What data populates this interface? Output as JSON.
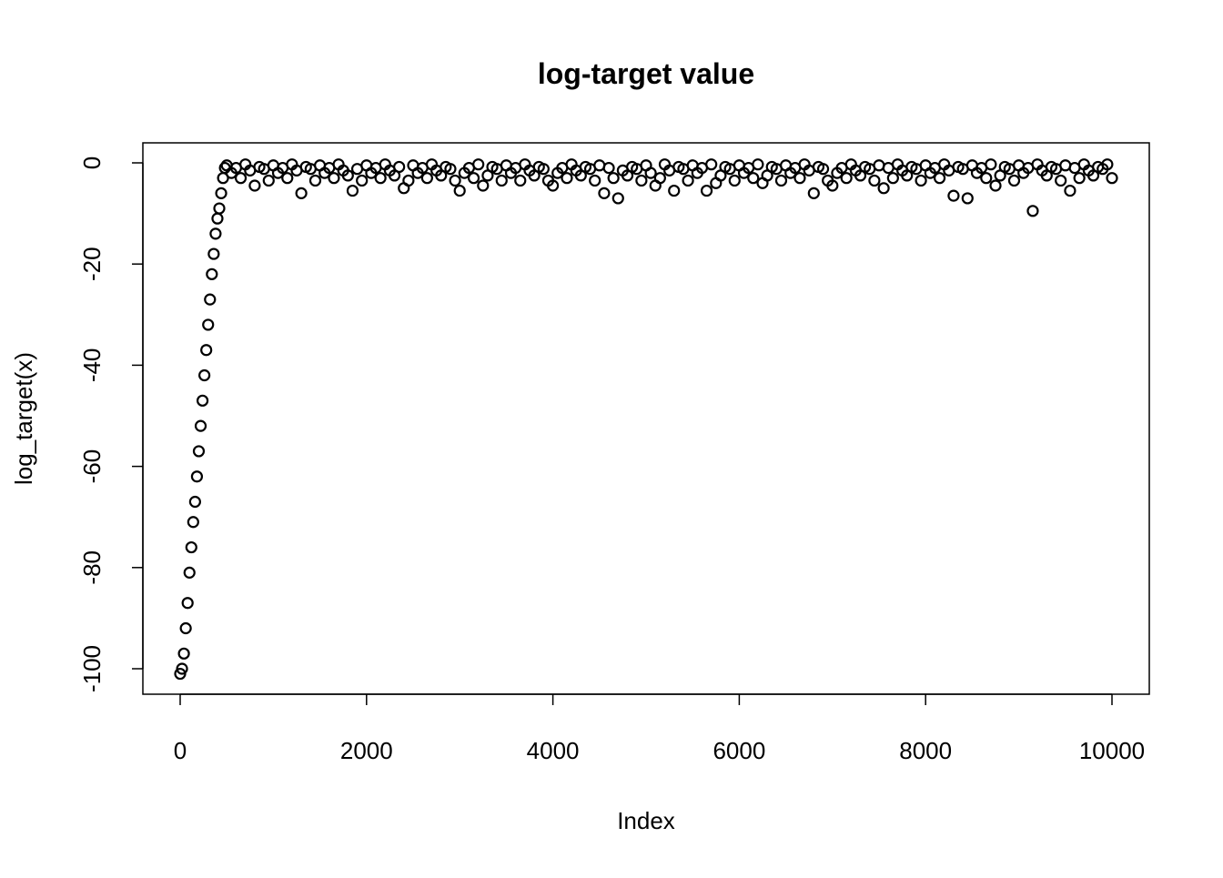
{
  "chart_data": {
    "type": "scatter",
    "title": "log-target value",
    "xlabel": "Index",
    "ylabel": "log_target(x)",
    "xlim": [
      0,
      10000
    ],
    "ylim": [
      -100,
      0
    ],
    "xticks": [
      "0",
      "2000",
      "4000",
      "6000",
      "8000",
      "10000"
    ],
    "yticks": [
      "0",
      "-20",
      "-40",
      "-60",
      "-80",
      "-100"
    ],
    "grid": false,
    "marker": "open-circle",
    "color": "#000000",
    "x": [
      0,
      20,
      40,
      60,
      80,
      100,
      120,
      140,
      160,
      180,
      200,
      220,
      240,
      260,
      280,
      300,
      320,
      340,
      360,
      380,
      400,
      420,
      440,
      460,
      480,
      500,
      550,
      600,
      650,
      700,
      750,
      800,
      850,
      900,
      950,
      1000,
      1050,
      1100,
      1150,
      1200,
      1250,
      1300,
      1350,
      1400,
      1450,
      1500,
      1550,
      1600,
      1650,
      1700,
      1750,
      1800,
      1850,
      1900,
      1950,
      2000,
      2050,
      2100,
      2150,
      2200,
      2250,
      2300,
      2350,
      2400,
      2450,
      2500,
      2550,
      2600,
      2650,
      2700,
      2750,
      2800,
      2850,
      2900,
      2950,
      3000,
      3050,
      3100,
      3150,
      3200,
      3250,
      3300,
      3350,
      3400,
      3450,
      3500,
      3550,
      3600,
      3650,
      3700,
      3750,
      3800,
      3850,
      3900,
      3950,
      4000,
      4050,
      4100,
      4150,
      4200,
      4250,
      4300,
      4350,
      4400,
      4450,
      4500,
      4550,
      4600,
      4650,
      4700,
      4750,
      4800,
      4850,
      4900,
      4950,
      5000,
      5050,
      5100,
      5150,
      5200,
      5250,
      5300,
      5350,
      5400,
      5450,
      5500,
      5550,
      5600,
      5650,
      5700,
      5750,
      5800,
      5850,
      5900,
      5950,
      6000,
      6050,
      6100,
      6150,
      6200,
      6250,
      6300,
      6350,
      6400,
      6450,
      6500,
      6550,
      6600,
      6650,
      6700,
      6750,
      6800,
      6850,
      6900,
      6950,
      7000,
      7050,
      7100,
      7150,
      7200,
      7250,
      7300,
      7350,
      7400,
      7450,
      7500,
      7550,
      7600,
      7650,
      7700,
      7750,
      7800,
      7850,
      7900,
      7950,
      8000,
      8050,
      8100,
      8150,
      8200,
      8250,
      8300,
      8350,
      8400,
      8450,
      8500,
      8550,
      8600,
      8650,
      8700,
      8750,
      8800,
      8850,
      8900,
      8950,
      9000,
      9050,
      9100,
      9150,
      9200,
      9250,
      9300,
      9350,
      9400,
      9450,
      9500,
      9550,
      9600,
      9650,
      9700,
      9750,
      9800,
      9850,
      9900,
      9950,
      10000
    ],
    "y": [
      -101,
      -100,
      -97,
      -92,
      -87,
      -81,
      -76,
      -71,
      -67,
      -62,
      -57,
      -52,
      -47,
      -42,
      -37,
      -32,
      -27,
      -22,
      -18,
      -14,
      -11,
      -9,
      -6,
      -3,
      -1,
      -0.5,
      -2,
      -1,
      -3,
      -0.3,
      -1.5,
      -4.5,
      -0.8,
      -1.2,
      -3.5,
      -0.5,
      -2,
      -1,
      -3,
      -0.3,
      -1.5,
      -6,
      -0.8,
      -1.2,
      -3.5,
      -0.5,
      -2,
      -1,
      -3,
      -0.3,
      -1.5,
      -2.5,
      -5.5,
      -1.2,
      -3.5,
      -0.5,
      -2,
      -1,
      -3,
      -0.3,
      -1.5,
      -2.5,
      -0.8,
      -5,
      -3.5,
      -0.5,
      -2,
      -1,
      -3,
      -0.3,
      -1.5,
      -2.5,
      -0.8,
      -1.2,
      -3.5,
      -5.5,
      -2,
      -1,
      -3,
      -0.3,
      -4.5,
      -2.5,
      -0.8,
      -1.2,
      -3.5,
      -0.5,
      -2,
      -1,
      -3.5,
      -0.3,
      -1.5,
      -2.5,
      -0.8,
      -1.2,
      -3.5,
      -4.5,
      -2,
      -1,
      -3,
      -0.3,
      -1.5,
      -2.5,
      -0.8,
      -1.2,
      -3.5,
      -0.5,
      -6,
      -1,
      -3,
      -7,
      -1.5,
      -2.5,
      -0.8,
      -1.2,
      -3.5,
      -0.5,
      -2,
      -4.5,
      -3,
      -0.3,
      -1.5,
      -5.5,
      -0.8,
      -1.2,
      -3.5,
      -0.5,
      -2,
      -1,
      -5.5,
      -0.3,
      -4,
      -2.5,
      -0.8,
      -1.2,
      -3.5,
      -0.5,
      -2,
      -1,
      -3,
      -0.3,
      -4,
      -2.5,
      -0.8,
      -1.2,
      -3.5,
      -0.5,
      -2,
      -1,
      -3,
      -0.3,
      -1.5,
      -6,
      -0.8,
      -1.2,
      -3.5,
      -4.5,
      -2,
      -1,
      -3,
      -0.3,
      -1.5,
      -2.5,
      -0.8,
      -1.2,
      -3.5,
      -0.5,
      -5,
      -1,
      -3,
      -0.3,
      -1.5,
      -2.5,
      -0.8,
      -1.2,
      -3.5,
      -0.5,
      -2,
      -1,
      -3,
      -0.3,
      -1.5,
      -6.5,
      -0.8,
      -1.2,
      -7,
      -0.5,
      -2,
      -1,
      -3,
      -0.3,
      -4.5,
      -2.5,
      -0.8,
      -1.2,
      -3.5,
      -0.5,
      -2,
      -1,
      -9.5,
      -0.3,
      -1.5,
      -2.5,
      -0.8,
      -1.2,
      -3.5,
      -0.5,
      -5.5,
      -1,
      -3,
      -0.3,
      -1.5,
      -2.5,
      -0.8,
      -1.2,
      -0.3,
      -3
    ]
  }
}
